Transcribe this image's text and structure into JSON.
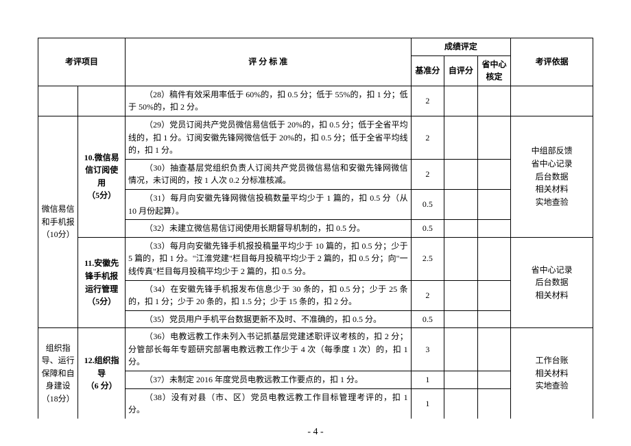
{
  "header": {
    "col_project": "考评项目",
    "col_standard": "评 分 标 准",
    "col_score_group": "成绩评定",
    "col_base": "基准分",
    "col_self": "自评分",
    "col_verify": "省中心\n核定",
    "col_basis": "考评依据"
  },
  "rows": [
    {
      "c1": "",
      "c2": "",
      "c1_nb": true,
      "c2_nb": true,
      "criteria": "（28）稿件有效采用率低于 60%的，扣 0.5 分；低于 55%的，扣 1 分；低于 50%的，扣 2 分。",
      "base": "2",
      "self": "",
      "verify": ""
    },
    {
      "c1": "微信易信和手机报\n（10分）",
      "c1_rs": 7,
      "c2": "10.微信易信订阅使用\n（5分）",
      "c2_rs": 4,
      "criteria": "（29）党员订阅共产党员微信易信低于 20%的，扣 0.5 分；低于全省平均线的，扣 1 分。订阅安徽先锋网微信低于 20%的，扣 0.5 分；低于全省平均线的，扣 1 分。",
      "base": "2",
      "self": "",
      "verify": "",
      "basis": "中组部反馈\n省中心记录\n后台数据\n相关材料\n实地查验",
      "basis_rs": 4
    },
    {
      "criteria": "（30）抽查基层党组织负责人订阅共产党员微信易信和安徽先锋网微信情况，未订阅的，按 1 人次 0.2 分标准核减。",
      "base": "2",
      "self": "",
      "verify": ""
    },
    {
      "criteria": "（31）每月向安徽先锋网微信投稿数量平均少于 1 篇的，扣 0.5 分（从 10 月份起算）。",
      "base": "0.5",
      "self": "",
      "verify": ""
    },
    {
      "criteria": "（32）未建立微信易信订阅使用长期督导机制的，扣 0.5 分。",
      "base": "0.5",
      "self": "",
      "verify": ""
    },
    {
      "c2": "11.安徽先锋手机报运行管理\n（5分）",
      "c2_rs": 3,
      "criteria": "（33）每月向安徽先锋手机报投稿量平均少于 10 篇的，扣 0.5 分；少于 5 篇的，扣 1 分。\"江淮党建\"栏目每月投稿平均少于 2 篇的，扣 0.5 分；向\"一线传真\"栏目每月投稿平均少于 2 篇的，扣 0.5 分。",
      "base": "2.5",
      "self": "",
      "verify": "",
      "basis": "省中心记录\n后台数据\n相关材料",
      "basis_rs": 3
    },
    {
      "criteria": "（34）在安徽先锋手机报发布信息少于 30 条的，扣 0.5 分；少于 25 条的，扣 1 分；少于 20 条的，扣 1.5 分；少于 15 条的，扣 2 分。",
      "base": "2",
      "self": "",
      "verify": ""
    },
    {
      "criteria": "（35）党员用户手机平台数据更新不及时、不准确的，扣 0.5 分。",
      "base": "0.5",
      "self": "",
      "verify": ""
    },
    {
      "c1": "组织指导、运行保障和自身建设\n（18分）",
      "c1_rs": 3,
      "c1_nb": true,
      "c2": "12.组织指导\n（6 分）",
      "c2_rs": 3,
      "c2_nb": true,
      "criteria": "（36）电教远教工作未列入书记抓基层党建述职评议考核的，扣 2 分；分管部长每年专题研究部署电教远教工作少于 4 次（每季度 1 次）的，扣 1 分。",
      "base": "3",
      "self": "",
      "verify": "",
      "basis": "工作台账\n相关材料\n实地查验",
      "basis_rs": 3,
      "basis_nb": true
    },
    {
      "criteria": "（37）未制定 2016 年度党员电教远教工作要点的，扣 1 分。",
      "base": "1",
      "self": "",
      "verify": ""
    },
    {
      "criteria": "（38）没有对县（市、区）党员电教远教工作目标管理考评的，扣 1 分。",
      "base": "1",
      "self": "",
      "verify": "",
      "last_nb": true
    }
  ],
  "footer": "- 4 -"
}
